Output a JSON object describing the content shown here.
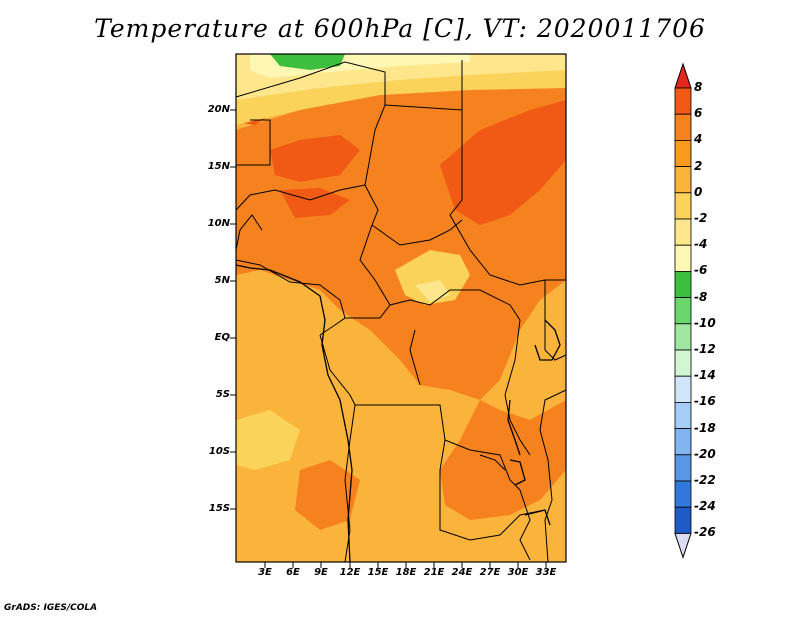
{
  "title": "Temperature at 600hPa [C], VT: 2020011706",
  "credit": "GrADS: IGES/COLA",
  "map": {
    "lat_labels": [
      "20N",
      "15N",
      "10N",
      "5N",
      "EQ",
      "5S",
      "10S",
      "15S"
    ],
    "lon_labels": [
      "3E",
      "6E",
      "9E",
      "12E",
      "15E",
      "18E",
      "21E",
      "24E",
      "27E",
      "30E",
      "33E"
    ]
  },
  "colorbar": {
    "levels": [
      "8",
      "6",
      "4",
      "2",
      "0",
      "-2",
      "-4",
      "-6",
      "-8",
      "-10",
      "-12",
      "-14",
      "-16",
      "-18",
      "-20",
      "-22",
      "-24",
      "-26"
    ],
    "colors": [
      "#e4281e",
      "#f05a14",
      "#f5821e",
      "#fa9b1e",
      "#fab43c",
      "#fbd25a",
      "#fde68c",
      "#fff8b4",
      "#3cbf3c",
      "#6cd66c",
      "#a0e6a0",
      "#d2f5d2",
      "#d2e6fa",
      "#a6cdf5",
      "#82b4f0",
      "#5a96e6",
      "#3278dc",
      "#1e5ac8",
      "#1441a0",
      "#0a2878",
      "#dcdcf5"
    ]
  },
  "legend_colors": {
    "temp_2_4": "#fab43c",
    "temp_4_6": "#f5821e",
    "temp_6_8": "#f05a14",
    "temp_0_2": "#fbd25a",
    "temp_m2_0": "#fde68c",
    "temp_m4_m2": "#fff8b4",
    "temp_m6_m4": "#3cbf3c"
  }
}
